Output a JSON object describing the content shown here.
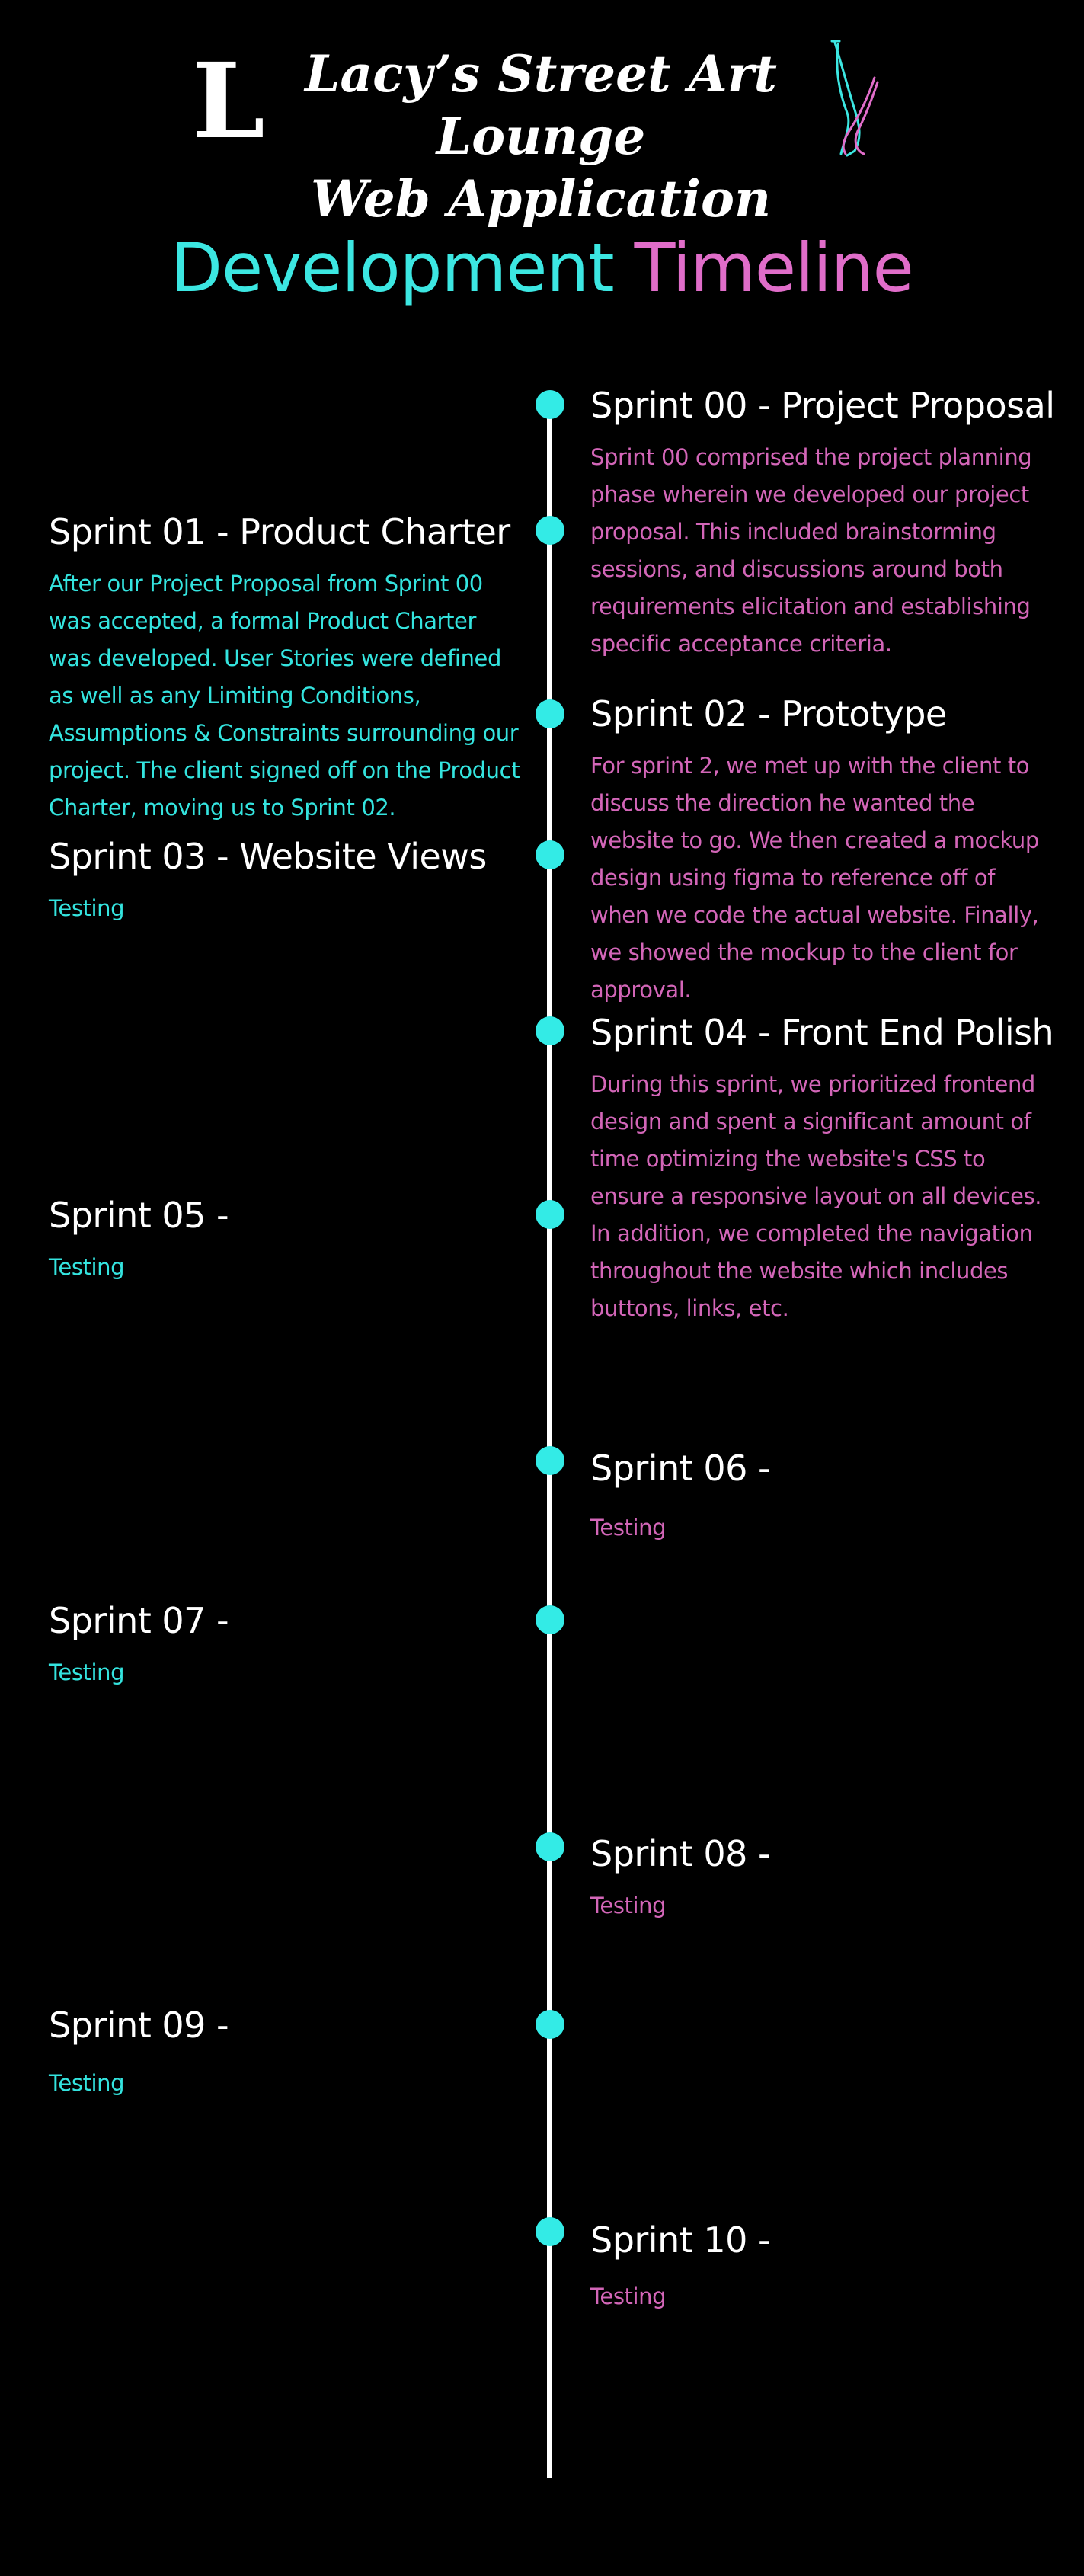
{
  "header": {
    "logo_letter": "L",
    "title_line1": "Lacy’s Street Art Lounge",
    "title_line2": "Web Application",
    "logo_icon": "legs-icon"
  },
  "heading": {
    "part1": "Development",
    "part2": "Timeline"
  },
  "colors": {
    "accent_cyan": "#3ce7e2",
    "accent_pink": "#e06dc9",
    "background": "#000000",
    "line": "#ffffff"
  },
  "sprints": [
    {
      "title": "Sprint 00 - Project Proposal",
      "body": "Sprint 00 comprised the project planning phase wherein we developed our project proposal. This included brainstorming sessions, and discussions around both requirements elicitation and establishing specific acceptance criteria."
    },
    {
      "title": "Sprint 01 - Product Charter",
      "body": "After our Project Proposal from Sprint 00 was accepted, a formal Product Charter was developed. User Stories were defined as well as any Limiting Conditions, Assumptions & Constraints surrounding our project. The client signed off on the Product Charter, moving us to Sprint 02."
    },
    {
      "title": "Sprint 02 - Prototype",
      "body": "For sprint 2, we met up with the client to discuss the direction he wanted the website to go. We then created a mockup design using figma to reference off of when we code the actual website. Finally, we showed the mockup to the client for approval."
    },
    {
      "title": "Sprint 03 - Website Views",
      "body": "Testing"
    },
    {
      "title": "Sprint 04 - Front End Polish",
      "body": "During this sprint, we prioritized frontend design and spent a significant amount of time optimizing the website's CSS to ensure a responsive layout on all devices. In addition, we completed the navigation throughout the website which includes buttons, links, etc."
    },
    {
      "title": "Sprint 05 -",
      "body": "Testing"
    },
    {
      "title": "Sprint 06 -",
      "body": "Testing"
    },
    {
      "title": "Sprint 07 -",
      "body": "Testing"
    },
    {
      "title": "Sprint 08 -",
      "body": "Testing"
    },
    {
      "title": "Sprint 09 -",
      "body": "Testing"
    },
    {
      "title": "Sprint 10 -",
      "body": "Testing"
    }
  ]
}
